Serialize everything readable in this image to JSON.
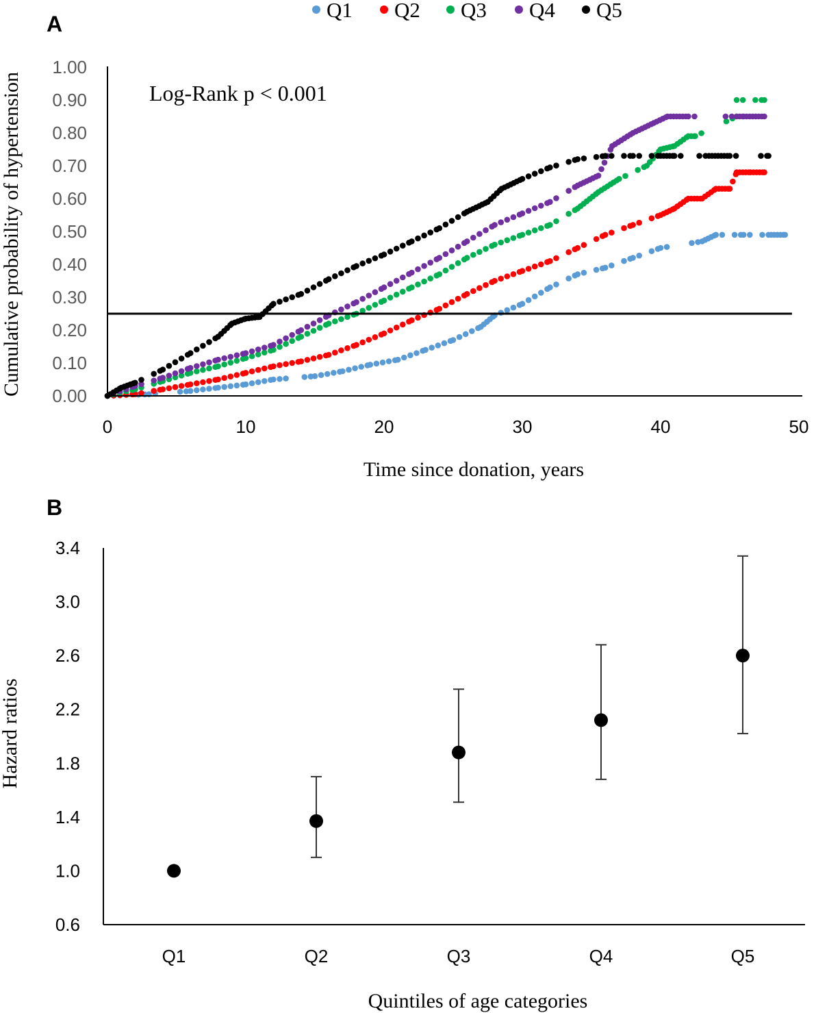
{
  "panel_a_letter": "A",
  "panel_b_letter": "B",
  "colors": {
    "Q1": "#5b9bd5",
    "Q2": "#ff0000",
    "Q3": "#00b050",
    "Q4": "#7030a0",
    "Q5": "#000000",
    "axis": "#000000",
    "tick_text_a": "#595959"
  },
  "chart_data": [
    {
      "type": "scatter",
      "subtype": "kaplan-meier cumulative incidence (dotted step curves)",
      "xlabel": "Time since donation, years",
      "ylabel": "Cumulative probability of hypertension",
      "xlim": [
        0,
        50
      ],
      "ylim": [
        0,
        1
      ],
      "x_ticks": [
        "0",
        "10",
        "20",
        "30",
        "40",
        "50"
      ],
      "y_ticks": [
        "0.00",
        "0.10",
        "0.20",
        "0.30",
        "0.40",
        "0.50",
        "0.60",
        "0.70",
        "0.80",
        "0.90",
        "1.00"
      ],
      "legend": [
        "Q1",
        "Q2",
        "Q3",
        "Q4",
        "Q5"
      ],
      "legend_position": "top",
      "annotation": "Log-Rank p < 0.001",
      "reference_line_y": 0.25,
      "grid": false,
      "series": [
        {
          "name": "Q1",
          "points": [
            [
              0,
              0
            ],
            [
              3,
              0.005
            ],
            [
              6,
              0.015
            ],
            [
              8,
              0.025
            ],
            [
              10,
              0.035
            ],
            [
              12,
              0.05
            ],
            [
              15,
              0.06
            ],
            [
              17,
              0.075
            ],
            [
              19,
              0.095
            ],
            [
              21,
              0.11
            ],
            [
              23,
              0.14
            ],
            [
              25,
              0.17
            ],
            [
              27,
              0.21
            ],
            [
              28,
              0.245
            ],
            [
              30,
              0.28
            ],
            [
              32,
              0.33
            ],
            [
              34,
              0.37
            ],
            [
              36,
              0.39
            ],
            [
              38,
              0.42
            ],
            [
              40,
              0.45
            ],
            [
              43,
              0.47
            ],
            [
              44,
              0.49
            ],
            [
              46,
              0.49
            ],
            [
              48,
              0.49
            ],
            [
              49,
              0.49
            ]
          ]
        },
        {
          "name": "Q2",
          "points": [
            [
              0,
              0
            ],
            [
              2,
              0.005
            ],
            [
              4,
              0.02
            ],
            [
              6,
              0.035
            ],
            [
              8,
              0.05
            ],
            [
              10,
              0.07
            ],
            [
              12,
              0.09
            ],
            [
              14,
              0.105
            ],
            [
              16,
              0.125
            ],
            [
              18,
              0.155
            ],
            [
              20,
              0.19
            ],
            [
              22,
              0.23
            ],
            [
              24,
              0.265
            ],
            [
              26,
              0.31
            ],
            [
              28,
              0.35
            ],
            [
              30,
              0.38
            ],
            [
              32,
              0.41
            ],
            [
              34,
              0.45
            ],
            [
              36,
              0.49
            ],
            [
              38,
              0.52
            ],
            [
              40,
              0.55
            ],
            [
              41,
              0.57
            ],
            [
              42,
              0.6
            ],
            [
              43,
              0.6
            ],
            [
              44,
              0.63
            ],
            [
              45,
              0.63
            ],
            [
              45.5,
              0.68
            ],
            [
              46.5,
              0.68
            ],
            [
              47.5,
              0.68
            ]
          ]
        },
        {
          "name": "Q3",
          "points": [
            [
              0,
              0
            ],
            [
              2,
              0.02
            ],
            [
              4,
              0.045
            ],
            [
              6,
              0.07
            ],
            [
              8,
              0.09
            ],
            [
              10,
              0.115
            ],
            [
              12,
              0.14
            ],
            [
              14,
              0.18
            ],
            [
              16,
              0.22
            ],
            [
              18,
              0.25
            ],
            [
              20,
              0.29
            ],
            [
              22,
              0.33
            ],
            [
              24,
              0.37
            ],
            [
              26,
              0.42
            ],
            [
              28,
              0.46
            ],
            [
              30,
              0.49
            ],
            [
              32,
              0.52
            ],
            [
              34,
              0.57
            ],
            [
              35.5,
              0.62
            ],
            [
              37,
              0.66
            ],
            [
              39,
              0.7
            ],
            [
              40,
              0.75
            ],
            [
              41,
              0.76
            ],
            [
              42,
              0.79
            ],
            [
              42.5,
              0.79
            ],
            [
              45.5,
              0.85
            ],
            [
              45.5,
              0.9
            ],
            [
              47.5,
              0.9
            ]
          ]
        },
        {
          "name": "Q4",
          "points": [
            [
              0,
              0
            ],
            [
              2,
              0.03
            ],
            [
              4,
              0.055
            ],
            [
              6,
              0.085
            ],
            [
              8,
              0.11
            ],
            [
              10,
              0.13
            ],
            [
              12,
              0.155
            ],
            [
              14,
              0.2
            ],
            [
              16,
              0.245
            ],
            [
              18,
              0.285
            ],
            [
              20,
              0.33
            ],
            [
              22,
              0.375
            ],
            [
              24,
              0.42
            ],
            [
              26,
              0.47
            ],
            [
              28,
              0.52
            ],
            [
              30,
              0.555
            ],
            [
              32,
              0.59
            ],
            [
              34,
              0.64
            ],
            [
              35.5,
              0.67
            ],
            [
              36.5,
              0.76
            ],
            [
              38,
              0.8
            ],
            [
              39.5,
              0.83
            ],
            [
              40.5,
              0.85
            ],
            [
              42,
              0.85
            ],
            [
              45.5,
              0.85
            ],
            [
              46,
              0.85
            ],
            [
              47.5,
              0.85
            ]
          ]
        },
        {
          "name": "Q5",
          "points": [
            [
              0,
              0
            ],
            [
              1,
              0.025
            ],
            [
              2,
              0.04
            ],
            [
              4,
              0.08
            ],
            [
              6,
              0.13
            ],
            [
              8,
              0.18
            ],
            [
              9,
              0.22
            ],
            [
              10,
              0.235
            ],
            [
              11,
              0.24
            ],
            [
              12,
              0.28
            ],
            [
              14,
              0.31
            ],
            [
              16,
              0.355
            ],
            [
              18,
              0.395
            ],
            [
              20,
              0.43
            ],
            [
              22,
              0.47
            ],
            [
              24,
              0.51
            ],
            [
              26,
              0.56
            ],
            [
              27.5,
              0.59
            ],
            [
              28.5,
              0.63
            ],
            [
              30,
              0.66
            ],
            [
              32,
              0.695
            ],
            [
              34,
              0.72
            ],
            [
              36,
              0.73
            ],
            [
              38,
              0.73
            ],
            [
              40,
              0.73
            ],
            [
              41,
              0.73
            ],
            [
              43.5,
              0.73
            ],
            [
              45,
              0.73
            ],
            [
              47.8,
              0.73
            ]
          ]
        }
      ]
    },
    {
      "type": "scatter",
      "subtype": "point estimates with error bars",
      "xlabel": "Quintiles of age categories",
      "ylabel": "Hazard ratios",
      "categories": [
        "Q1",
        "Q2",
        "Q3",
        "Q4",
        "Q5"
      ],
      "ylim": [
        0.6,
        3.4
      ],
      "y_ticks": [
        "0.6",
        "1.0",
        "1.4",
        "1.8",
        "2.2",
        "2.6",
        "3.0",
        "3.4"
      ],
      "grid": false,
      "values": [
        1.0,
        1.37,
        1.88,
        2.12,
        2.6
      ],
      "ci_lower": [
        null,
        1.1,
        1.51,
        1.68,
        2.02
      ],
      "ci_upper": [
        null,
        1.7,
        2.35,
        2.68,
        3.34
      ]
    }
  ]
}
